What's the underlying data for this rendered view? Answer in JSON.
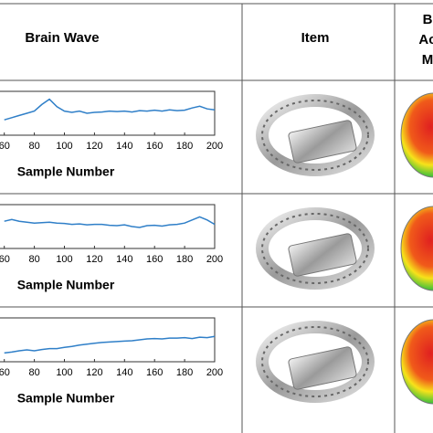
{
  "table": {
    "headers": [
      "Brain Wave",
      "Item",
      [
        "B",
        "Ac",
        "M"
      ]
    ]
  },
  "chart_data": [
    {
      "type": "line",
      "xlabel": "Sample Number",
      "color": "#2f7fc8",
      "x": [
        60,
        65,
        70,
        75,
        80,
        85,
        90,
        95,
        100,
        105,
        110,
        115,
        120,
        125,
        130,
        135,
        140,
        145,
        150,
        155,
        160,
        165,
        170,
        175,
        180,
        185,
        190,
        195,
        200
      ],
      "values": [
        35,
        40,
        45,
        50,
        55,
        70,
        82,
        65,
        55,
        52,
        55,
        50,
        52,
        53,
        55,
        54,
        55,
        53,
        56,
        55,
        57,
        55,
        58,
        56,
        57,
        62,
        66,
        60,
        58
      ],
      "xlim": [
        0,
        200
      ],
      "ylim": [
        0,
        100
      ],
      "xticks": [
        60,
        80,
        100,
        120,
        140,
        160,
        180,
        200
      ]
    },
    {
      "type": "line",
      "xlabel": "Sample Number",
      "color": "#2f7fc8",
      "x": [
        60,
        65,
        70,
        75,
        80,
        85,
        90,
        95,
        100,
        105,
        110,
        115,
        120,
        125,
        130,
        135,
        140,
        145,
        150,
        155,
        160,
        165,
        170,
        175,
        180,
        185,
        190,
        195,
        200
      ],
      "values": [
        62,
        66,
        62,
        60,
        58,
        59,
        60,
        58,
        57,
        55,
        56,
        54,
        55,
        55,
        53,
        52,
        54,
        50,
        48,
        52,
        53,
        51,
        54,
        55,
        58,
        65,
        72,
        65,
        55
      ],
      "xlim": [
        0,
        200
      ],
      "ylim": [
        0,
        100
      ],
      "xticks": [
        60,
        80,
        100,
        120,
        140,
        160,
        180,
        200
      ]
    },
    {
      "type": "line",
      "xlabel": "Sample Number",
      "color": "#2f7fc8",
      "x": [
        60,
        65,
        70,
        75,
        80,
        85,
        90,
        95,
        100,
        105,
        110,
        115,
        120,
        125,
        130,
        135,
        140,
        145,
        150,
        155,
        160,
        165,
        170,
        175,
        180,
        185,
        190,
        195,
        200
      ],
      "values": [
        20,
        22,
        25,
        27,
        25,
        28,
        30,
        30,
        33,
        35,
        38,
        40,
        42,
        44,
        45,
        46,
        47,
        48,
        50,
        52,
        53,
        52,
        54,
        54,
        55,
        53,
        56,
        55,
        58
      ],
      "xlim": [
        0,
        200
      ],
      "ylim": [
        0,
        100
      ],
      "xticks": [
        60,
        80,
        100,
        120,
        140,
        160,
        180,
        200
      ]
    }
  ]
}
